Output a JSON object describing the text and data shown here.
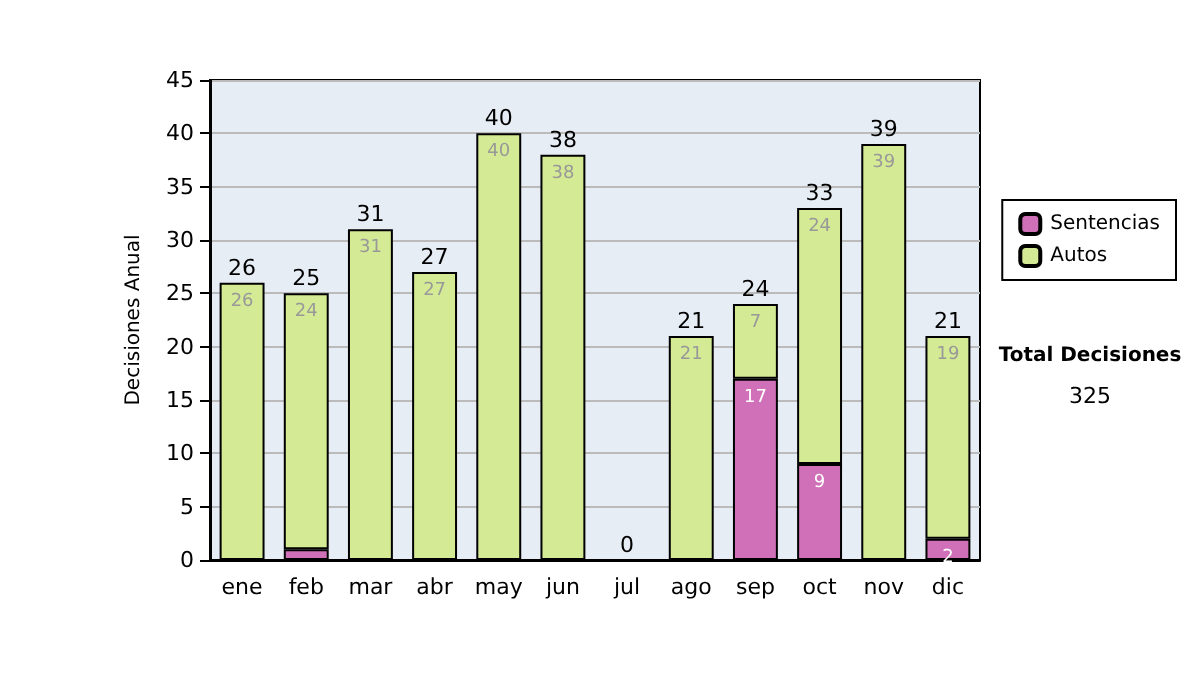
{
  "chart_data": {
    "type": "bar",
    "stacked": true,
    "ylabel": "Decisiones Anual",
    "categories": [
      "ene",
      "feb",
      "mar",
      "abr",
      "may",
      "jun",
      "jul",
      "ago",
      "sep",
      "oct",
      "nov",
      "dic"
    ],
    "series": [
      {
        "name": "Sentencias",
        "color": "#d070b8",
        "values": [
          0,
          1,
          0,
          0,
          0,
          0,
          0,
          0,
          17,
          9,
          0,
          2
        ],
        "value_labels": [
          null,
          null,
          null,
          null,
          null,
          null,
          null,
          null,
          "17",
          "9",
          null,
          "2"
        ]
      },
      {
        "name": "Autos",
        "color": "#d4ea94",
        "values": [
          26,
          24,
          31,
          27,
          40,
          38,
          0,
          21,
          7,
          24,
          39,
          19
        ],
        "value_labels": [
          "26",
          "24",
          "31",
          "27",
          "40",
          "38",
          null,
          "21",
          "7",
          "24",
          "39",
          "19"
        ]
      }
    ],
    "totals": [
      "26",
      "25",
      "31",
      "27",
      "40",
      "38",
      "0",
      "21",
      "24",
      "33",
      "39",
      "21"
    ],
    "ylim": [
      0,
      45
    ],
    "yticks": [
      0,
      5,
      10,
      15,
      20,
      25,
      30,
      35,
      40,
      45
    ],
    "grid": "y",
    "legend": "right",
    "annotations": [
      "Total Decisiones",
      "325"
    ]
  }
}
